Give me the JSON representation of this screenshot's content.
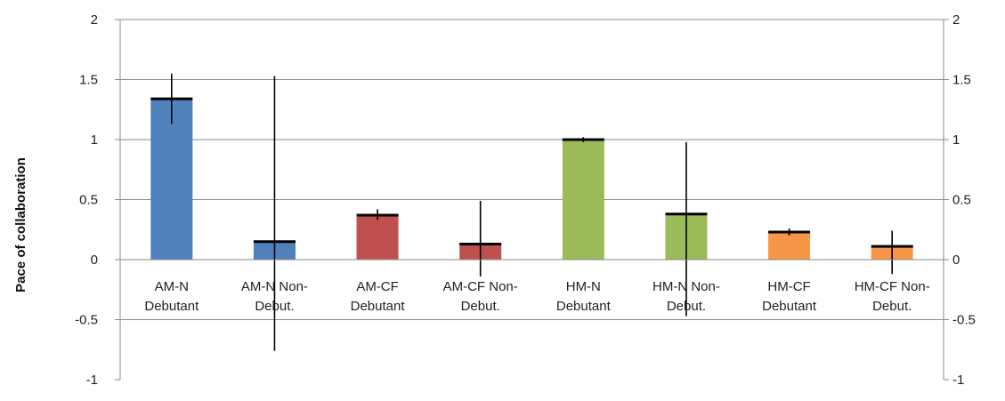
{
  "chart_data": {
    "type": "bar",
    "ylabel": "Pace of collaboration",
    "xlabel": "",
    "ylim": [
      -1,
      2
    ],
    "yticks": [
      "-1",
      "-0.5",
      "0",
      "0.5",
      "1",
      "1.5",
      "2"
    ],
    "right_axis": true,
    "grid": "horizontal",
    "categories": [
      [
        "AM-N",
        "Debutant"
      ],
      [
        "AM-N Non-",
        "Debut."
      ],
      [
        "AM-CF",
        "Debutant"
      ],
      [
        "AM-CF Non-",
        "Debut."
      ],
      [
        "HM-N",
        "Debutant"
      ],
      [
        "HM-N Non-",
        "Debut."
      ],
      [
        "HM-CF",
        "Debutant"
      ],
      [
        "HM-CF Non-",
        "Debut."
      ]
    ],
    "values": [
      1.34,
      0.15,
      0.37,
      0.13,
      1.0,
      0.38,
      0.23,
      0.11
    ],
    "error_low": [
      1.13,
      -0.76,
      0.33,
      -0.14,
      0.98,
      -0.47,
      0.2,
      -0.12
    ],
    "error_high": [
      1.55,
      1.53,
      0.42,
      0.49,
      1.02,
      0.98,
      0.26,
      0.24
    ],
    "colors": [
      "#4F81BD",
      "#4F81BD",
      "#C0504D",
      "#C0504D",
      "#9BBB59",
      "#9BBB59",
      "#F79646",
      "#F79646"
    ]
  }
}
